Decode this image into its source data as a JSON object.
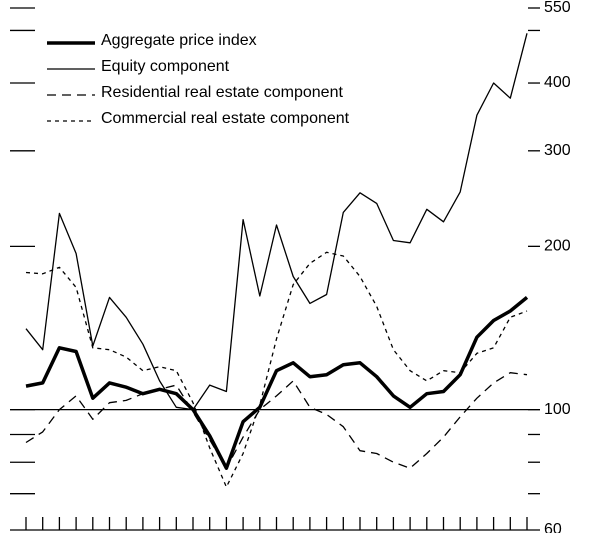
{
  "chart_data": {
    "type": "line",
    "categories": [
      null,
      null,
      null,
      null,
      null,
      null,
      null,
      null,
      null,
      null,
      null,
      null,
      null,
      null,
      null,
      null,
      null,
      null,
      null,
      null,
      null,
      null,
      null,
      null,
      null,
      null,
      null,
      null,
      null,
      null,
      null
    ],
    "series": [
      {
        "name": "Aggregate price index",
        "color": "#000000",
        "style": "thick",
        "values": [
          110.5,
          112,
          130,
          128,
          105,
          112,
          110,
          107,
          109,
          107,
          100,
          89.5,
          78,
          95,
          101,
          118,
          122,
          115,
          116,
          121,
          122,
          115,
          106,
          101,
          107,
          108,
          116,
          136,
          146,
          152,
          161
        ]
      },
      {
        "name": "Equity component",
        "color": "#000000",
        "style": "solid",
        "values": [
          141,
          129,
          230,
          194,
          131,
          161,
          148,
          132,
          113,
          101,
          100,
          111,
          108,
          224,
          162,
          219,
          176,
          157,
          163,
          231,
          251,
          240,
          205,
          203,
          234,
          222,
          252,
          349,
          400,
          375,
          494
        ]
      },
      {
        "name": "Residential real estate component",
        "color": "#000000",
        "style": "dashed",
        "values": [
          87,
          91,
          100,
          106,
          96,
          103,
          104,
          107,
          109,
          111,
          99,
          88,
          78,
          89,
          100,
          106,
          113,
          101,
          98,
          93,
          84,
          83,
          80,
          78,
          83,
          89,
          97,
          105,
          112,
          117,
          116
        ]
      },
      {
        "name": "Commercial real estate component",
        "color": "#000000",
        "style": "dotted",
        "values": [
          179,
          178,
          183,
          168,
          130,
          129,
          125,
          118,
          120,
          118,
          103,
          85,
          72,
          83,
          102,
          135,
          170,
          186,
          195,
          192,
          176,
          155,
          129,
          118,
          113,
          118,
          117,
          127,
          130,
          148,
          152
        ]
      }
    ],
    "log_scale": true,
    "ylim": [
      60,
      550
    ],
    "yticks": [
      60,
      100,
      200,
      300,
      400,
      550
    ],
    "yminor_ticks": [
      70,
      80,
      90,
      500
    ],
    "reference_line": 100,
    "y_axis_side": "right",
    "legend": "top-left"
  }
}
